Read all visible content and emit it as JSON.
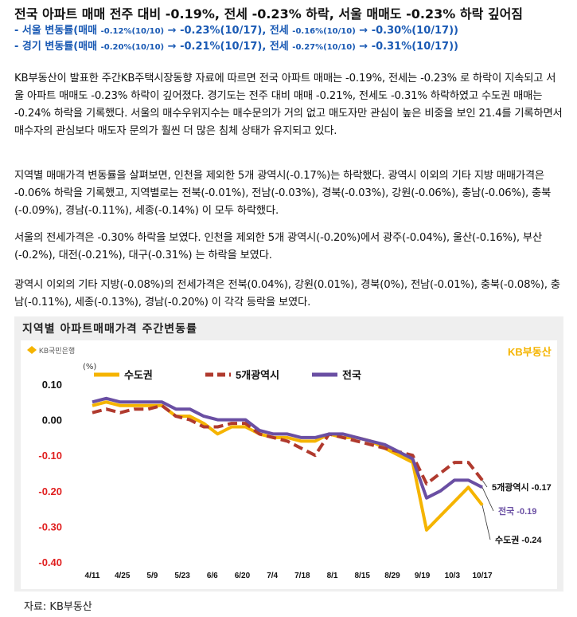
{
  "headline": "전국 아파트 매매 전주 대비 -0.19%, 전세 -0.23% 하락, 서울 매매도 -0.23% 하락 깊어짐",
  "summary": [
    {
      "label": "- 서울 변동률(매매 ",
      "prev": "-0.12%(10/10)",
      "arrow": " → ",
      "cur": "-0.23%(10/17)",
      "mid": ", 전세 ",
      "prev2": "-0.16%(10/10)",
      "arrow2": " → ",
      "cur2": "-0.30%(10/17))"
    },
    {
      "label": "- 경기 변동률(매매 ",
      "prev": "-0.20%(10/10)",
      "arrow": " → ",
      "cur": "-0.21%(10/17)",
      "mid": ", 전세 ",
      "prev2": "-0.27%(10/10)",
      "arrow2": " → ",
      "cur2": "-0.31%(10/17))"
    }
  ],
  "paragraphs": [
    "KB부동산이 발표한 주간KB주택시장동향 자료에 따르면 전국 아파트 매매는 -0.19%, 전세는 -0.23% 로 하락이 지속되고 서울 아파트 매매도 -0.23% 하락이 깊어졌다. 경기도는 전주 대비 매매 -0.21%, 전세도 -0.31% 하락하였고 수도권 매매는 -0.24% 하락을 기록했다. 서울의 매수우위지수는 매수문의가 거의 없고 매도자만 관심이 높은 비중을 보인 21.4를 기록하면서 매수자의 관심보다 매도자 문의가 훨씬 더 많은 침체 상태가 유지되고 있다.",
    "지역별 매매가격 변동률을 살펴보면, 인천을 제외한 5개 광역시(-0.17%)는 하락했다. 광역시 이외의 기타 지방 매매가격은 -0.06% 하락을 기록했고, 지역별로는 전북(-0.01%), 전남(-0.03%), 경북(-0.03%), 강원(-0.06%), 충남(-0.06%), 충북(-0.09%), 경남(-0.11%), 세종(-0.14%) 이 모두 하락했다.",
    "서울의 전세가격은 -0.30% 하락을 보였다. 인천을 제외한 5개 광역시(-0.20%)에서 광주(-0.04%), 울산(-0.16%), 부산(-0.2%), 대전(-0.21%), 대구(-0.31%) 는 하락을 보였다.",
    "광역시 이외의 기타 지방(-0.08%)의 전세가격은 전북(0.04%), 강원(0.01%), 경북(0%), 전남(-0.01%), 충북(-0.08%), 충남(-0.11%), 세종(-0.13%), 경남(-0.20%) 이 각각 등락을 보였다."
  ],
  "chart_box_title": "지역별 아파트매매가격 주간변동률",
  "bank_logo": "KB국민은행",
  "kb_logo": "KB부동산",
  "source": "자료: KB부동산",
  "colors": {
    "sudogwon": "#f5b400",
    "metro5": "#b03a2e",
    "national": "#6a4fa3",
    "negative": "#e02020",
    "subtitle": "#1a5ab4"
  },
  "chart_data": {
    "type": "line",
    "ylabel": "(%)",
    "ylim": [
      -0.4,
      0.1
    ],
    "yticks": [
      0.1,
      0.0,
      -0.1,
      -0.2,
      -0.3,
      -0.4
    ],
    "ytick_labels": [
      "0.10",
      "0.00",
      "-0.10",
      "-0.20",
      "-0.30",
      "-0.40"
    ],
    "legend_position": "top",
    "xtick_labels": [
      "4/11",
      "4/25",
      "5/9",
      "5/23",
      "6/6",
      "6/20",
      "7/4",
      "7/18",
      "8/1",
      "8/15",
      "8/29",
      "9/19",
      "10/3",
      "10/17"
    ],
    "series": [
      {
        "name": "수도권",
        "key": "sudogwon",
        "dashed": false,
        "values": [
          0.04,
          0.05,
          0.04,
          0.04,
          0.04,
          0.04,
          0.01,
          0.01,
          -0.01,
          -0.04,
          -0.02,
          -0.02,
          -0.04,
          -0.05,
          -0.05,
          -0.06,
          -0.06,
          -0.04,
          -0.05,
          -0.05,
          -0.06,
          -0.08,
          -0.1,
          -0.12,
          -0.31,
          -0.27,
          -0.23,
          -0.19,
          -0.24
        ],
        "end_label": "수도권 -0.24"
      },
      {
        "name": "5개광역시",
        "key": "metro5",
        "dashed": true,
        "values": [
          0.02,
          0.03,
          0.02,
          0.03,
          0.03,
          0.04,
          0.01,
          0.0,
          -0.02,
          -0.02,
          -0.01,
          -0.01,
          -0.04,
          -0.05,
          -0.06,
          -0.08,
          -0.1,
          -0.04,
          -0.05,
          -0.06,
          -0.07,
          -0.08,
          -0.09,
          -0.1,
          -0.18,
          -0.15,
          -0.12,
          -0.12,
          -0.17
        ],
        "end_label": "5개광역시 -0.17"
      },
      {
        "name": "전국",
        "key": "national",
        "dashed": false,
        "values": [
          0.05,
          0.06,
          0.05,
          0.05,
          0.05,
          0.05,
          0.03,
          0.03,
          0.01,
          0.0,
          0.0,
          0.0,
          -0.03,
          -0.04,
          -0.04,
          -0.05,
          -0.05,
          -0.04,
          -0.04,
          -0.05,
          -0.06,
          -0.07,
          -0.09,
          -0.11,
          -0.22,
          -0.2,
          -0.17,
          -0.17,
          -0.19
        ],
        "end_label": "전국 -0.19"
      }
    ]
  }
}
